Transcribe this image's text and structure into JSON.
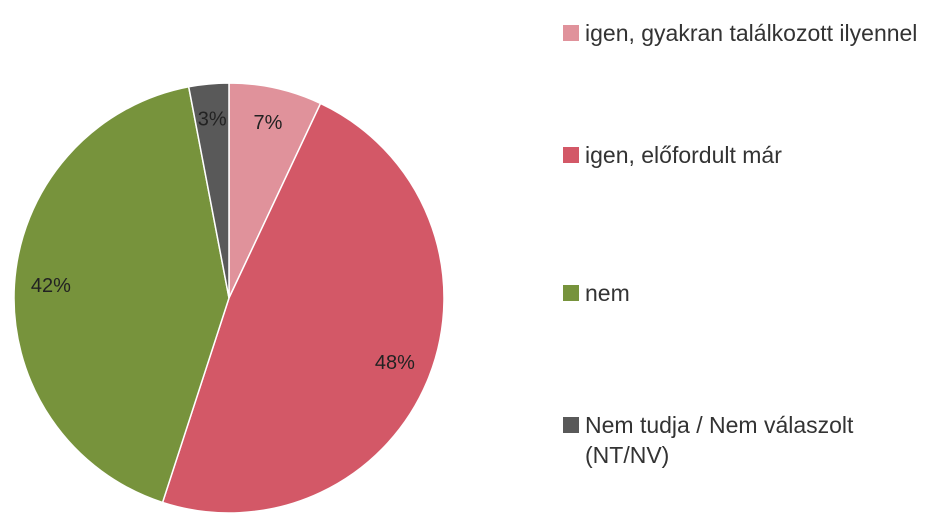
{
  "chart_data": {
    "type": "pie",
    "categories": [
      "igen, gyakran találkozott ilyennel",
      "igen, előfordult már",
      "nem",
      "Nem tudja / Nem válaszolt (NT/NV)"
    ],
    "values": [
      7,
      48,
      42,
      3
    ],
    "value_labels": [
      "7%",
      "48%",
      "42%",
      "3%"
    ],
    "colors": [
      "#e0929b",
      "#d35867",
      "#77933c",
      "#595959"
    ]
  }
}
